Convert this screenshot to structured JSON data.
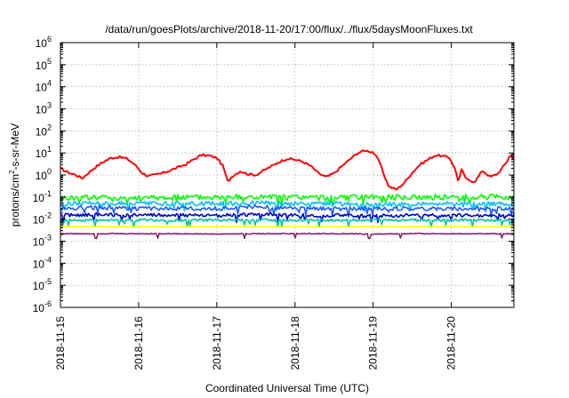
{
  "chart_data": {
    "type": "line",
    "title": "/data/run/goesPlots/archive/2018-11-20/17:00/flux/../flux/5daysMoonFluxes.txt",
    "xlabel": "Coordinated Universal Time (UTC)",
    "ylabel": {
      "base": "protons/cm",
      "sup": "2",
      "rest": "-s-sr-MeV"
    },
    "x_ticks": [
      "2018-11-15",
      "2018-11-16",
      "2018-11-17",
      "2018-11-18",
      "2018-11-19",
      "2018-11-20"
    ],
    "x_range_days": [
      0,
      5.8
    ],
    "yscale": "log",
    "ylim": [
      1e-06,
      1000000.0
    ],
    "y_ticks": [
      {
        "base": "10",
        "exp": "-6",
        "value": 1e-06
      },
      {
        "base": "10",
        "exp": "-5",
        "value": 1e-05
      },
      {
        "base": "10",
        "exp": "-4",
        "value": 0.0001
      },
      {
        "base": "10",
        "exp": "-3",
        "value": 0.001
      },
      {
        "base": "10",
        "exp": "-2",
        "value": 0.01
      },
      {
        "base": "10",
        "exp": "-1",
        "value": 0.1
      },
      {
        "base": "10",
        "exp": "0",
        "value": 1
      },
      {
        "base": "10",
        "exp": "1",
        "value": 10
      },
      {
        "base": "10",
        "exp": "2",
        "value": 100
      },
      {
        "base": "10",
        "exp": "3",
        "value": 1000
      },
      {
        "base": "10",
        "exp": "4",
        "value": 10000
      },
      {
        "base": "10",
        "exp": "5",
        "value": 100000
      },
      {
        "base": "10",
        "exp": "6",
        "value": 1000000
      }
    ],
    "grid": true,
    "legend": "none",
    "series": [
      {
        "color": "#ff0000",
        "x": [
          0,
          0.1,
          0.2,
          0.28,
          0.35,
          0.45,
          0.55,
          0.65,
          0.75,
          0.85,
          0.95,
          1.05,
          1.12,
          1.2,
          1.3,
          1.4,
          1.5,
          1.6,
          1.7,
          1.8,
          1.9,
          2.0,
          2.08,
          2.14,
          2.2,
          2.3,
          2.4,
          2.5,
          2.6,
          2.7,
          2.8,
          2.9,
          3.0,
          3.1,
          3.2,
          3.3,
          3.4,
          3.5,
          3.6,
          3.7,
          3.8,
          3.9,
          4.0,
          4.08,
          4.14,
          4.2,
          4.3,
          4.4,
          4.5,
          4.6,
          4.7,
          4.8,
          4.9,
          4.98,
          5.05,
          5.1,
          5.12,
          5.2,
          5.3,
          5.4,
          5.5,
          5.6,
          5.7,
          5.75,
          5.8
        ],
        "values": [
          2,
          1.3,
          1.0,
          0.7,
          1.2,
          2.3,
          4,
          6,
          6.5,
          5.5,
          3,
          1.2,
          0.9,
          1.0,
          1.2,
          1.6,
          2.2,
          3,
          5,
          8,
          7.5,
          6,
          2.5,
          0.5,
          0.9,
          1.5,
          1.1,
          1.0,
          1.6,
          2.5,
          4,
          5.5,
          5,
          4,
          2.6,
          1.2,
          0.8,
          1.2,
          2.5,
          5,
          10,
          13,
          11,
          4,
          1.0,
          0.3,
          0.22,
          0.45,
          1.3,
          3,
          5,
          8,
          7,
          6,
          1.8,
          0.4,
          2,
          0.6,
          0.5,
          1.6,
          0.8,
          1.2,
          3.5,
          8,
          5.5
        ]
      },
      {
        "color": "#00ff00",
        "x": [
          0,
          0.5,
          1.0,
          1.5,
          2.0,
          2.5,
          3.0,
          3.5,
          4.0,
          4.5,
          5.0,
          5.5,
          5.8
        ],
        "values": [
          0.09,
          0.1,
          0.09,
          0.1,
          0.1,
          0.1,
          0.1,
          0.09,
          0.1,
          0.1,
          0.1,
          0.1,
          0.1
        ]
      },
      {
        "color": "#00bfff",
        "x": [
          0,
          0.5,
          1.0,
          1.5,
          2.0,
          2.5,
          3.0,
          3.5,
          4.0,
          4.5,
          5.0,
          5.5,
          5.8
        ],
        "values": [
          0.05,
          0.055,
          0.05,
          0.05,
          0.05,
          0.055,
          0.05,
          0.05,
          0.045,
          0.05,
          0.05,
          0.05,
          0.05
        ]
      },
      {
        "color": "#1e5aff",
        "x": [
          0,
          0.5,
          1.0,
          1.5,
          2.0,
          2.5,
          3.0,
          3.5,
          4.0,
          4.5,
          5.0,
          5.5,
          5.8
        ],
        "values": [
          0.03,
          0.035,
          0.03,
          0.03,
          0.03,
          0.035,
          0.03,
          0.03,
          0.03,
          0.03,
          0.03,
          0.03,
          0.03
        ]
      },
      {
        "color": "#0000cd",
        "x": [
          0,
          0.5,
          1.0,
          1.5,
          2.0,
          2.5,
          3.0,
          3.5,
          4.0,
          4.5,
          5.0,
          5.5,
          5.8
        ],
        "values": [
          0.015,
          0.016,
          0.015,
          0.015,
          0.015,
          0.016,
          0.015,
          0.015,
          0.014,
          0.015,
          0.015,
          0.015,
          0.015
        ]
      },
      {
        "color": "#00c8a0",
        "x": [
          0,
          0.5,
          1.0,
          1.5,
          2.0,
          2.5,
          3.0,
          3.5,
          4.0,
          4.5,
          5.0,
          5.5,
          5.8
        ],
        "values": [
          0.009,
          0.009,
          0.009,
          0.009,
          0.009,
          0.009,
          0.009,
          0.009,
          0.009,
          0.009,
          0.009,
          0.009,
          0.009
        ]
      },
      {
        "color": "#ffff00",
        "x": [
          0,
          1.0,
          2.0,
          3.0,
          4.0,
          5.0,
          5.8
        ],
        "values": [
          0.0045,
          0.0045,
          0.0045,
          0.0045,
          0.0045,
          0.0045,
          0.0045
        ]
      },
      {
        "color": "#8b2070",
        "x": [
          0,
          0.5,
          1.0,
          1.5,
          2.0,
          2.5,
          3.0,
          3.5,
          4.0,
          4.5,
          5.0,
          5.5,
          5.8
        ],
        "values": [
          0.0022,
          0.0022,
          0.0022,
          0.0022,
          0.0021,
          0.0022,
          0.0022,
          0.0022,
          0.0021,
          0.0022,
          0.0022,
          0.0022,
          0.0022
        ]
      }
    ]
  }
}
